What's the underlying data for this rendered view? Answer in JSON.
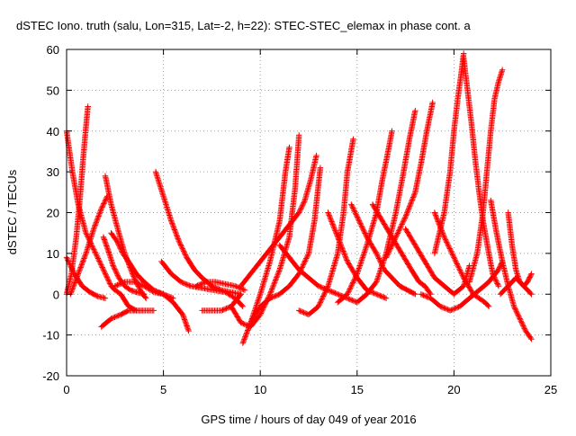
{
  "chart_data": {
    "type": "scatter",
    "title": "dSTEC Iono. truth (salu, Lon=315, Lat=-2, h=22): STEC-STEC_elemax in phase cont. a",
    "xlabel": "GPS time / hours of day 049 of year 2016",
    "ylabel": "dSTEC  / TECUs",
    "xlim": [
      0,
      25
    ],
    "ylim": [
      -20,
      60
    ],
    "xticks": [
      0,
      5,
      10,
      15,
      20,
      25
    ],
    "yticks": [
      -20,
      -10,
      0,
      10,
      20,
      30,
      40,
      50,
      60
    ],
    "xtick_labels": [
      "0",
      "5",
      "10",
      "15",
      "20",
      "25"
    ],
    "ytick_labels": [
      "-20",
      "-10",
      "0",
      "10",
      "20",
      "30",
      "40",
      "50",
      "60"
    ],
    "grid": true,
    "legend": "none",
    "marker": "+",
    "series_color": "#ff0000",
    "series": [
      {
        "x": [
          0.0,
          0.3,
          0.6,
          1.0,
          1.5,
          2.0,
          2.3,
          2.5,
          2.8,
          3.2,
          3.6
        ],
        "y": [
          40,
          30,
          22,
          15,
          10,
          5,
          2,
          1,
          0,
          -3,
          -4
        ]
      },
      {
        "x": [
          0.0,
          0.25,
          0.5,
          0.7,
          0.85,
          1.0,
          1.1
        ],
        "y": [
          0,
          5,
          14,
          24,
          33,
          41,
          46
        ]
      },
      {
        "x": [
          0.0,
          0.4,
          0.8,
          1.2,
          1.6,
          2.0
        ],
        "y": [
          9,
          5,
          2,
          0.5,
          -0.5,
          -1
        ]
      },
      {
        "x": [
          0.2,
          0.6,
          1.0,
          1.4,
          1.8,
          2.1
        ],
        "y": [
          0,
          5,
          10,
          16,
          21,
          24
        ]
      },
      {
        "x": [
          1.8,
          2.3,
          2.8,
          3.2,
          3.6,
          4.0,
          4.5
        ],
        "y": [
          -8,
          -6,
          -5,
          -4,
          -4,
          -4,
          -4
        ]
      },
      {
        "x": [
          1.9,
          2.2,
          2.4,
          2.7,
          3.0,
          3.3,
          3.6,
          4.0
        ],
        "y": [
          14,
          10,
          7,
          4,
          2,
          1,
          0.5,
          0
        ]
      },
      {
        "x": [
          2.0,
          2.3,
          2.7,
          3.0,
          3.4,
          3.8,
          4.1
        ],
        "y": [
          29,
          22,
          15,
          10,
          5,
          1,
          -1
        ]
      },
      {
        "x": [
          2.3,
          2.6,
          2.9,
          3.2,
          3.6,
          4.0,
          4.5,
          5.0,
          5.5,
          6.0,
          6.3
        ],
        "y": [
          15,
          13,
          10,
          8,
          5,
          3,
          1,
          0,
          -2,
          -5,
          -9
        ]
      },
      {
        "x": [
          2.5,
          3.0,
          3.5,
          4.0,
          4.5,
          5.0,
          5.5
        ],
        "y": [
          2,
          3,
          3,
          2,
          0.5,
          0,
          -1
        ]
      },
      {
        "x": [
          4.6,
          5.0,
          5.4,
          5.8,
          6.2,
          6.6,
          7.0,
          7.5,
          8.0,
          8.5,
          9.0
        ],
        "y": [
          30,
          24,
          18,
          13,
          9,
          6,
          4,
          2,
          1,
          0.5,
          0
        ]
      },
      {
        "x": [
          4.9,
          5.4,
          5.9,
          6.4,
          7.0,
          7.6,
          8.2,
          8.7,
          9.1
        ],
        "y": [
          8,
          5,
          3,
          2,
          1.5,
          1,
          0.5,
          -1,
          -3
        ]
      },
      {
        "x": [
          7.0,
          7.5,
          8.0,
          8.5,
          9.0
        ],
        "y": [
          -4,
          -4,
          -4,
          -3,
          0
        ]
      },
      {
        "x": [
          6.7,
          7.2,
          7.7,
          8.2,
          8.7,
          9.2
        ],
        "y": [
          2,
          3,
          3,
          2.5,
          2,
          1
        ]
      },
      {
        "x": [
          9.1,
          9.5,
          10.0,
          10.5,
          11.0,
          11.3,
          11.5
        ],
        "y": [
          -12,
          -7,
          0,
          8,
          18,
          30,
          36
        ]
      },
      {
        "x": [
          8.5,
          9.0,
          9.5,
          10.0,
          10.5,
          11.0,
          11.5,
          11.8,
          12.0
        ],
        "y": [
          -3,
          -7,
          -8,
          -5,
          0,
          6,
          14,
          26,
          39
        ]
      },
      {
        "x": [
          9.0,
          9.5,
          10.0,
          10.5,
          11.0,
          11.5,
          12.0,
          12.3,
          12.6,
          12.9
        ],
        "y": [
          2,
          5,
          8,
          11,
          14,
          17,
          20,
          23,
          28,
          34
        ]
      },
      {
        "x": [
          9.5,
          10.0,
          10.5,
          11.0,
          11.5,
          12.0,
          12.5,
          12.8,
          13.1
        ],
        "y": [
          -7,
          -3,
          -1,
          0,
          2,
          5,
          10,
          18,
          31
        ]
      },
      {
        "x": [
          12.0,
          12.5,
          13.0,
          13.5,
          14.0,
          14.3,
          14.5,
          14.8
        ],
        "y": [
          -4,
          -5,
          -3,
          2,
          10,
          20,
          30,
          38
        ]
      },
      {
        "x": [
          11.0,
          11.5,
          12.0,
          12.5,
          13.0,
          13.5,
          14.0,
          14.5,
          15.0,
          15.5
        ],
        "y": [
          12,
          9,
          6,
          4,
          2,
          1,
          0,
          -1,
          -2,
          0
        ]
      },
      {
        "x": [
          13.5,
          14.0,
          14.5,
          15.0,
          15.5,
          16.0,
          16.5
        ],
        "y": [
          20,
          14,
          8,
          4,
          1,
          0,
          -1
        ]
      },
      {
        "x": [
          14.0,
          14.5,
          15.0,
          15.5,
          16.0,
          16.3,
          16.6,
          16.8
        ],
        "y": [
          -2,
          0,
          5,
          12,
          20,
          28,
          35,
          40
        ]
      },
      {
        "x": [
          14.7,
          15.1,
          15.5,
          16.0,
          16.4,
          16.8,
          17.2,
          17.6,
          18.0
        ],
        "y": [
          22,
          18,
          14,
          10,
          6,
          4,
          2,
          1,
          0
        ]
      },
      {
        "x": [
          15.5,
          16.0,
          16.5,
          17.0,
          17.4,
          17.7,
          18.0
        ],
        "y": [
          0,
          3,
          10,
          20,
          30,
          38,
          45
        ]
      },
      {
        "x": [
          15.8,
          16.3,
          16.8,
          17.3,
          17.8,
          18.2,
          18.5,
          18.8
        ],
        "y": [
          22,
          18,
          14,
          10,
          6,
          3,
          2,
          0
        ]
      },
      {
        "x": [
          16.5,
          17.0,
          17.5,
          18.0,
          18.3,
          18.6,
          18.9
        ],
        "y": [
          9,
          14,
          19,
          25,
          32,
          40,
          47
        ]
      },
      {
        "x": [
          17.5,
          18.0,
          18.5,
          19.0,
          19.5,
          20.0,
          20.5,
          20.8
        ],
        "y": [
          16,
          12,
          8,
          4,
          2,
          0,
          2,
          7
        ]
      },
      {
        "x": [
          18.3,
          18.8,
          19.3,
          19.8,
          20.3,
          20.8,
          21.3,
          21.8,
          22.3,
          22.5
        ],
        "y": [
          0,
          -1,
          -3,
          -4,
          -3,
          -1,
          1,
          3,
          6,
          8
        ]
      },
      {
        "x": [
          19.0,
          19.5,
          19.8,
          20.0,
          20.2,
          20.4,
          20.5
        ],
        "y": [
          10,
          20,
          30,
          40,
          48,
          55,
          59
        ]
      },
      {
        "x": [
          20.5,
          20.7,
          20.9,
          21.1,
          21.3,
          21.5,
          21.8,
          22.0,
          22.3
        ],
        "y": [
          58,
          50,
          42,
          33,
          25,
          18,
          10,
          5,
          2
        ]
      },
      {
        "x": [
          19.0,
          19.5,
          20.0,
          20.5,
          21.0,
          21.3,
          21.6,
          21.8
        ],
        "y": [
          20,
          14,
          9,
          4,
          0,
          -1,
          -2,
          -3
        ]
      },
      {
        "x": [
          20.8,
          21.2,
          21.5,
          21.7,
          21.9,
          22.1,
          22.3,
          22.5
        ],
        "y": [
          3,
          10,
          20,
          30,
          40,
          48,
          52,
          55
        ]
      },
      {
        "x": [
          21.9,
          22.2,
          22.5,
          22.8,
          23.1,
          23.4,
          23.7,
          24.0
        ],
        "y": [
          23,
          15,
          8,
          2,
          -3,
          -6,
          -9,
          -11
        ]
      },
      {
        "x": [
          22.8,
          23.0,
          23.2,
          23.4,
          23.6,
          23.8,
          24.0
        ],
        "y": [
          20,
          12,
          6,
          3,
          2,
          3,
          5
        ]
      },
      {
        "x": [
          22.4,
          22.8,
          23.2,
          23.6,
          24.0
        ],
        "y": [
          0,
          2,
          4,
          2,
          0
        ]
      }
    ]
  }
}
